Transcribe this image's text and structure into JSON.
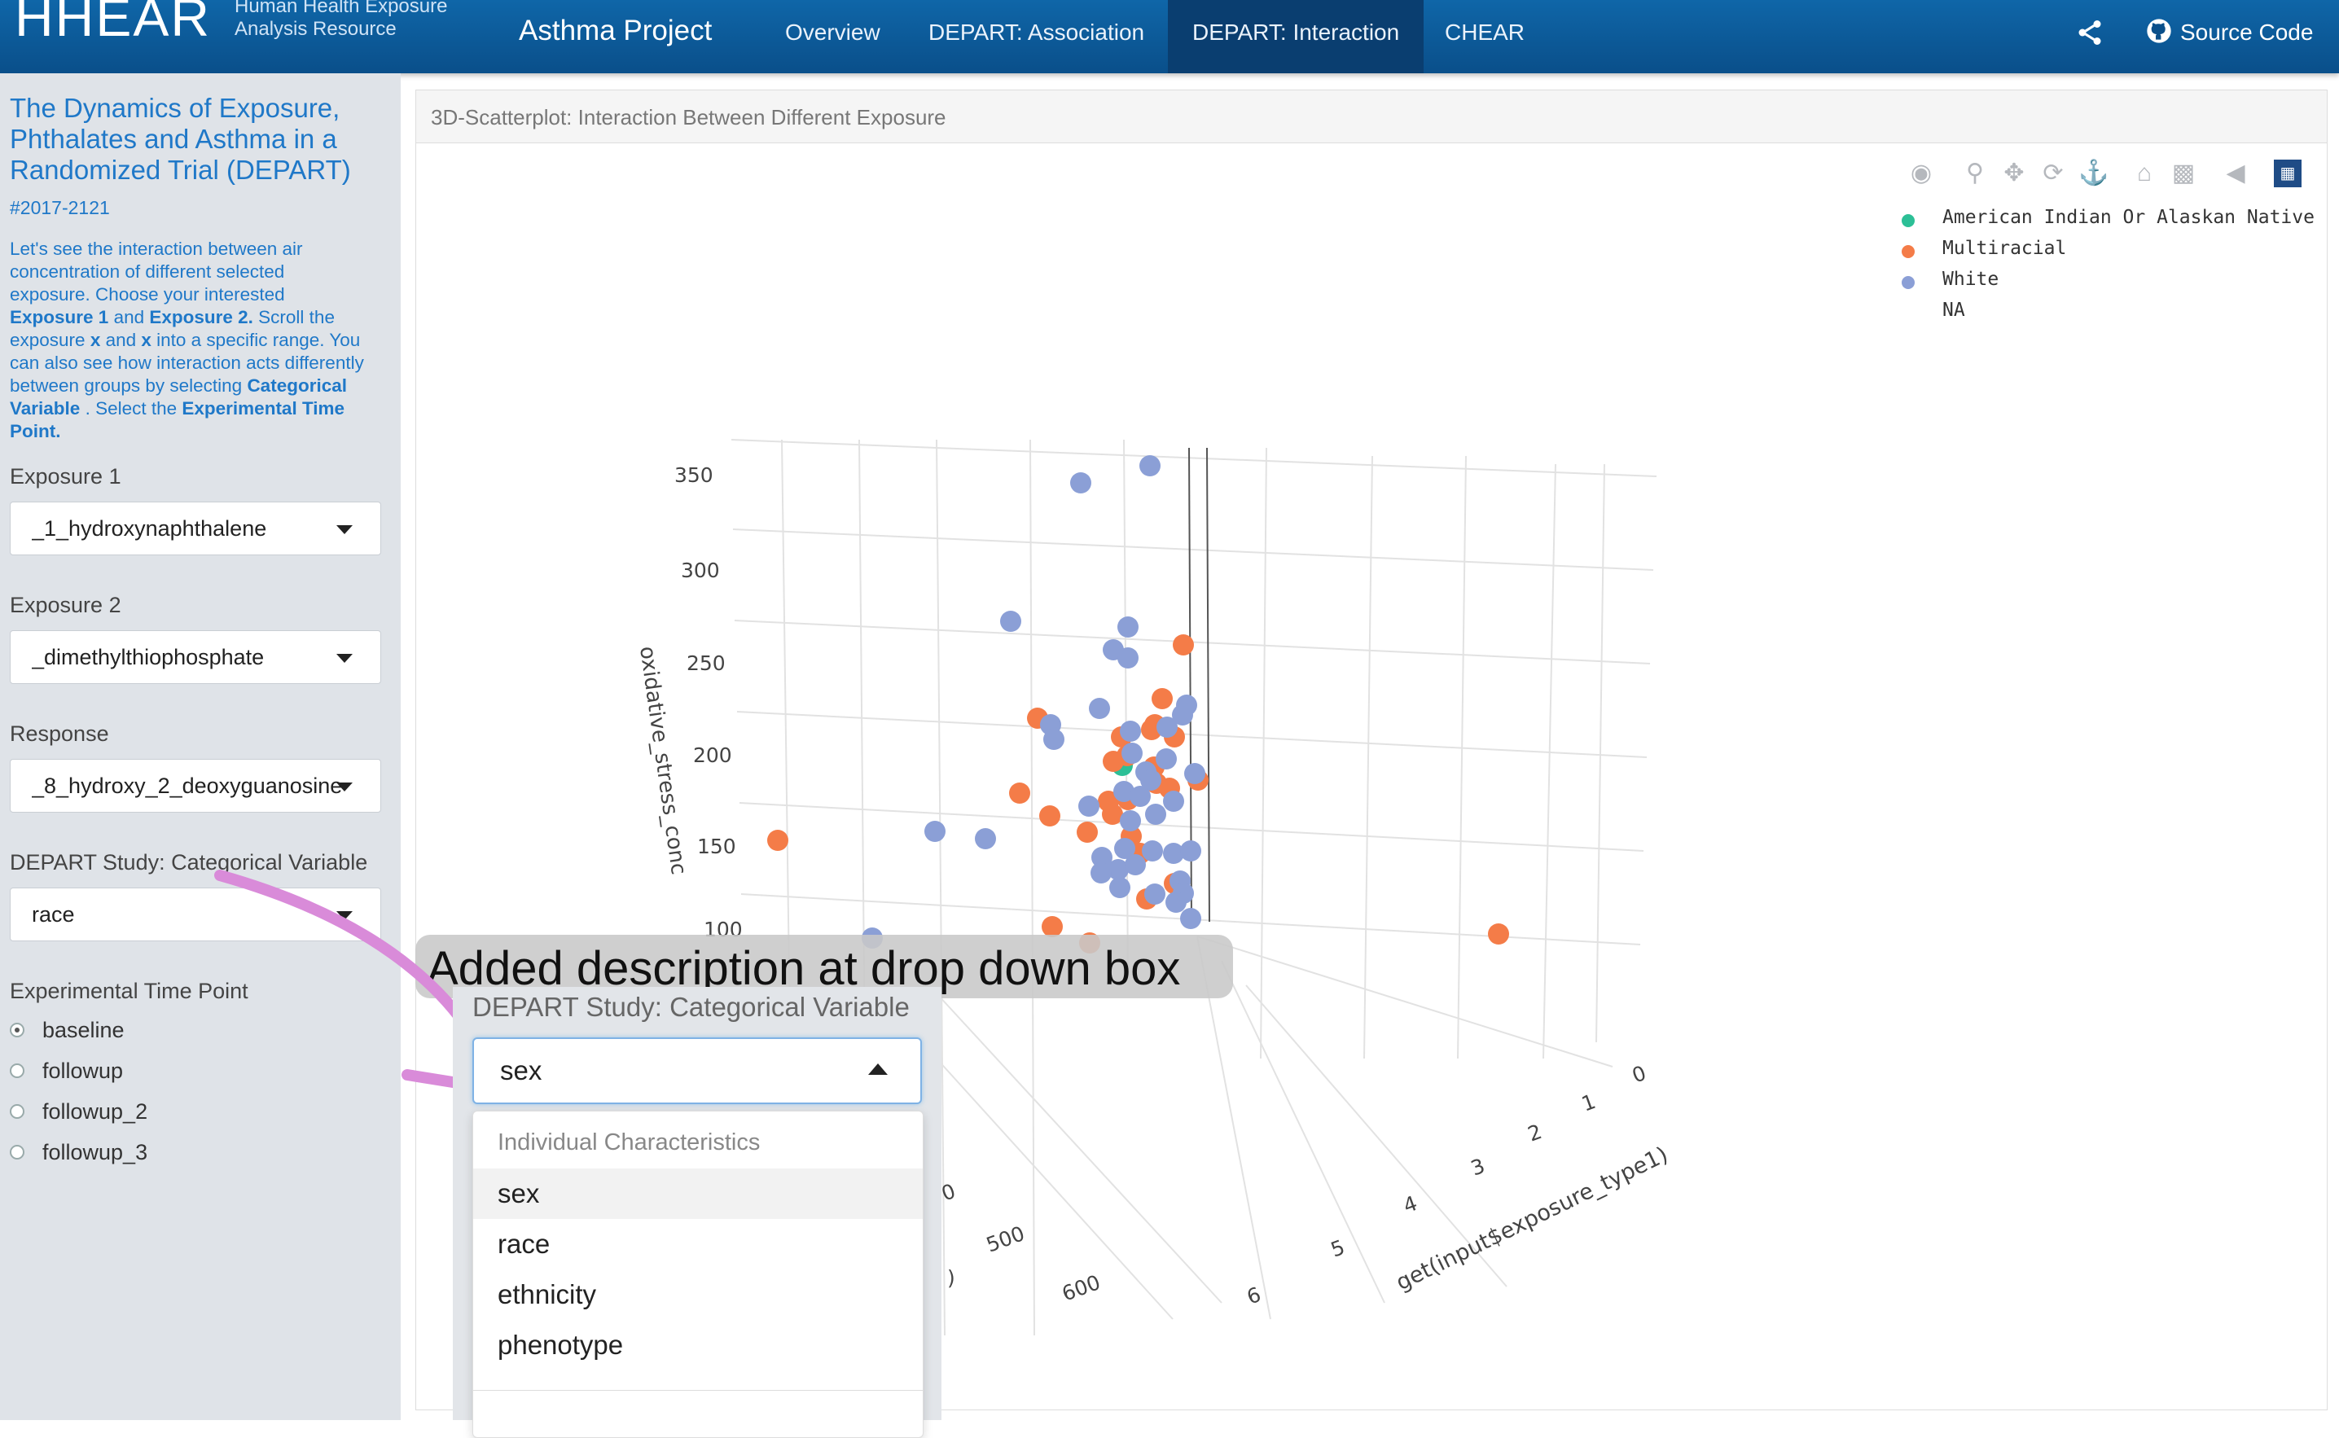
{
  "navbar": {
    "logo": "HHEAR",
    "logo_sub_1": "Human Health Exposure",
    "logo_sub_2": "Analysis Resource",
    "brand": "Asthma Project",
    "items": [
      "Overview",
      "DEPART: Association",
      "DEPART: Interaction",
      "CHEAR"
    ],
    "active_index": 2,
    "source_label": "Source Code"
  },
  "sidebar": {
    "title": "The Dynamics of Exposure, Phthalates and Asthma in a Randomized Trial (DEPART)",
    "study_id": "#2017-2121",
    "desc_1": "Let's see the interaction between air concentration of different selected exposure. Choose your interested ",
    "desc_b1": "Exposure 1",
    "desc_2": " and ",
    "desc_b2": "Exposure 2.",
    "desc_3": " Scroll the exposure ",
    "desc_b3": "x",
    "desc_4": " and ",
    "desc_b4": "x",
    "desc_5": " into a specific range. You can also see how interaction acts differently between groups by selecting ",
    "desc_b5": "Categorical Variable",
    "desc_6": " . Select the ",
    "desc_b6": "Experimental Time Point.",
    "exposure1_label": "Exposure 1",
    "exposure1_value": "_1_hydroxynaphthalene",
    "exposure2_label": "Exposure 2",
    "exposure2_value": "_dimethylthiophosphate",
    "response_label": "Response",
    "response_value": "_8_hydroxy_2_deoxyguanosine",
    "cat_label": "DEPART Study: Categorical Variable",
    "cat_value": "race",
    "time_label": "Experimental Time Point",
    "time_options": [
      "baseline",
      "followup",
      "followup_2",
      "followup_3"
    ],
    "time_selected": 0
  },
  "panel": {
    "title": "3D-Scatterplot: Interaction Between Different Exposure",
    "toolbar_icons": [
      "camera-icon",
      "zoom-icon",
      "pan-icon",
      "orbit-icon",
      "turntable-icon",
      "home-icon",
      "camera-video-icon",
      "hover-icon",
      "plotly-logo-icon"
    ]
  },
  "legend": [
    {
      "name": "American Indian Or Alaskan Native",
      "color": "#2cbf96"
    },
    {
      "name": "Multiracial",
      "color": "#f47c48"
    },
    {
      "name": "White",
      "color": "#8b9fd6"
    },
    {
      "name": "NA",
      "color": ""
    }
  ],
  "annotation": "Added description at drop down box",
  "dropdown": {
    "label": "DEPART Study: Categorical Variable",
    "value": "sex",
    "group": "Individual Characteristics",
    "options": [
      "sex",
      "race",
      "ethnicity",
      "phenotype"
    ],
    "highlighted": 0
  },
  "chart_data": {
    "type": "scatter",
    "subtype": "3d",
    "zlabel": "oxidative_stress_conc",
    "ylabel": "get(input$exposure_type1)",
    "z_ticks": [
      "350",
      "300",
      "250",
      "200",
      "150",
      "100"
    ],
    "y_ticks": [
      "0",
      "1",
      "2",
      "3",
      "4",
      "5",
      "6"
    ],
    "x_ticks": [
      "0",
      "500",
      "600"
    ],
    "x_label_fragment": ")",
    "series": [
      {
        "name": "American Indian Or Alaskan Native",
        "color": "#2cbf96",
        "points": [
          [
            1378,
            940
          ]
        ]
      },
      {
        "name": "Multiracial",
        "color": "#f47c48",
        "points": [
          [
            1453,
            792
          ],
          [
            1427,
            858
          ],
          [
            1418,
            890
          ],
          [
            1417,
            942
          ],
          [
            1377,
            905
          ],
          [
            1367,
            935
          ],
          [
            1384,
            928
          ],
          [
            1420,
            962
          ],
          [
            1436,
            968
          ],
          [
            1385,
            982
          ],
          [
            1361,
            984
          ],
          [
            1389,
            1027
          ],
          [
            1366,
            1000
          ],
          [
            1335,
            1022
          ],
          [
            1289,
            1002
          ],
          [
            1252,
            974
          ],
          [
            1274,
            882
          ],
          [
            1292,
            1138
          ],
          [
            1400,
            1048
          ],
          [
            1442,
            1085
          ],
          [
            1471,
            958
          ],
          [
            1414,
            896
          ],
          [
            1442,
            905
          ],
          [
            1338,
            1158
          ],
          [
            1408,
            1104
          ],
          [
            955,
            1032
          ],
          [
            1840,
            1147
          ]
        ]
      },
      {
        "name": "White",
        "color": "#8b9fd6",
        "points": [
          [
            1327,
            593
          ],
          [
            1412,
            572
          ],
          [
            1241,
            763
          ],
          [
            1385,
            770
          ],
          [
            1367,
            798
          ],
          [
            1385,
            808
          ],
          [
            1457,
            866
          ],
          [
            1452,
            878
          ],
          [
            1350,
            870
          ],
          [
            1290,
            890
          ],
          [
            1294,
            908
          ],
          [
            1388,
            898
          ],
          [
            1433,
            893
          ],
          [
            1390,
            925
          ],
          [
            1407,
            948
          ],
          [
            1380,
            972
          ],
          [
            1413,
            958
          ],
          [
            1432,
            932
          ],
          [
            1400,
            978
          ],
          [
            1419,
            1000
          ],
          [
            1467,
            950
          ],
          [
            1441,
            984
          ],
          [
            1388,
            1008
          ],
          [
            1337,
            990
          ],
          [
            1381,
            1042
          ],
          [
            1415,
            1045
          ],
          [
            1441,
            1048
          ],
          [
            1462,
            1045
          ],
          [
            1353,
            1053
          ],
          [
            1373,
            1068
          ],
          [
            1394,
            1062
          ],
          [
            1352,
            1072
          ],
          [
            1375,
            1090
          ],
          [
            1449,
            1082
          ],
          [
            1453,
            1097
          ],
          [
            1444,
            1108
          ],
          [
            1418,
            1098
          ],
          [
            1148,
            1021
          ],
          [
            1210,
            1030
          ],
          [
            1462,
            1128
          ],
          [
            1071,
            1152
          ]
        ]
      }
    ]
  }
}
